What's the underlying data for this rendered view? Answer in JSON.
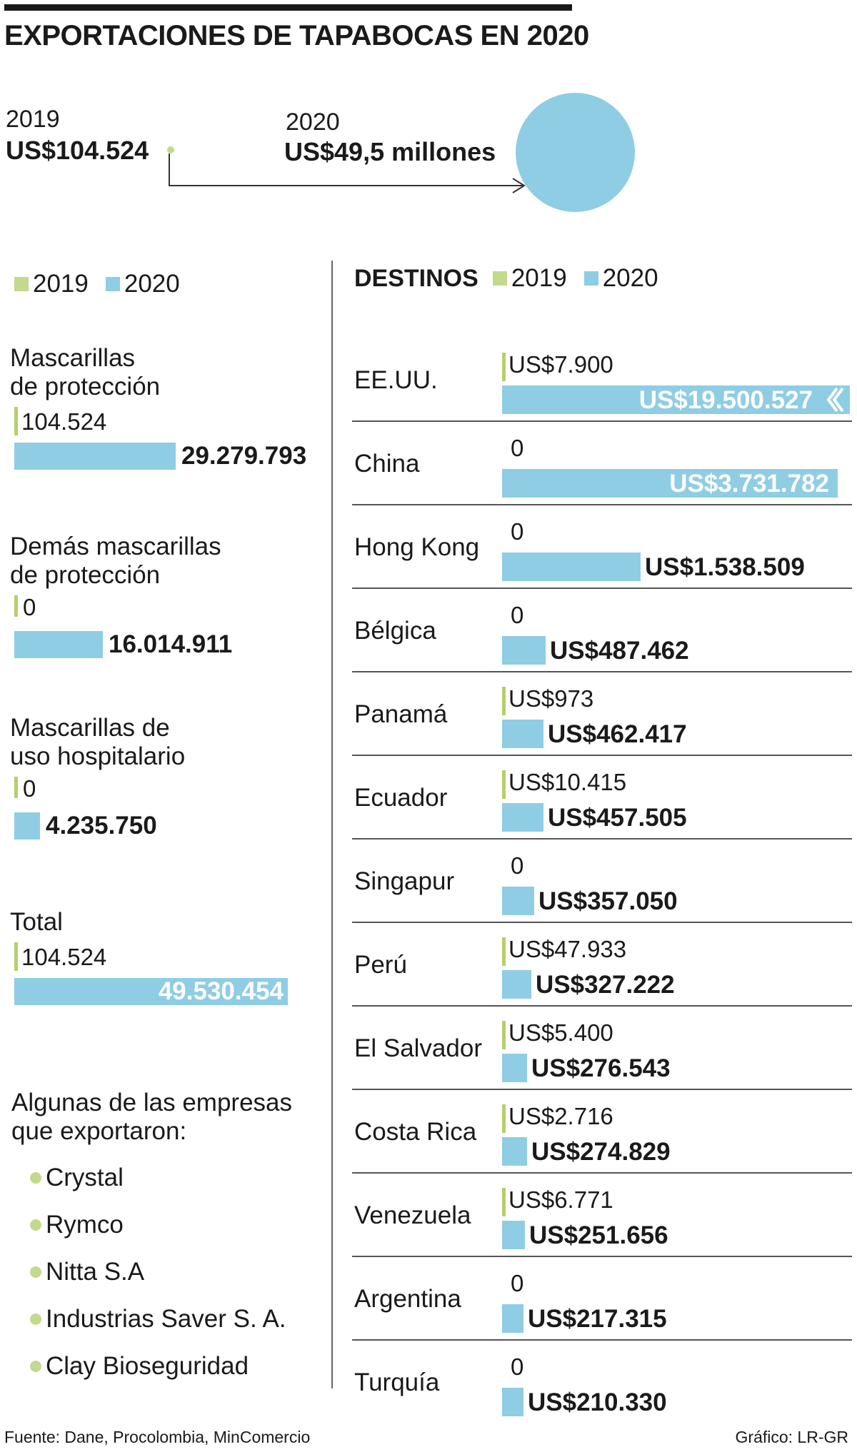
{
  "title": "EXPORTACIONES DE TAPABOCAS EN 2020",
  "summary": {
    "year_2019": "2019",
    "value_2019": "US$104.524",
    "year_2020": "2020",
    "value_2020": "US$49,5 millones"
  },
  "legend": {
    "y2019": "2019",
    "y2020": "2020"
  },
  "destinos_heading": "DESTINOS",
  "colors": {
    "c2019": "#b5d06a",
    "c2020": "#8fcde4",
    "text": "#1a1a1a"
  },
  "chart_data": [
    {
      "type": "bar",
      "categories": [
        "Mascarillas de protección",
        "Demás mascarillas de protección",
        "Mascarillas de uso hospitalario",
        "Total"
      ],
      "series": [
        {
          "name": "2019",
          "values": [
            104524,
            0,
            0,
            104524
          ],
          "labels": [
            "104.524",
            "0",
            "0",
            "104.524"
          ]
        },
        {
          "name": "2020",
          "values": [
            29279793,
            16014911,
            4235750,
            49530454
          ],
          "labels": [
            "29.279.793",
            "16.014.911",
            "4.235.750",
            "49.530.454"
          ]
        }
      ],
      "category_labels": [
        "Mascarillas\nde protección",
        "Demás mascarillas\nde protección",
        "Mascarillas de\nuso hospitalario",
        "Total"
      ]
    },
    {
      "type": "bar",
      "title": "DESTINOS",
      "categories": [
        "EE.UU.",
        "China",
        "Hong Kong",
        "Bélgica",
        "Panamá",
        "Ecuador",
        "Singapur",
        "Perú",
        "El Salvador",
        "Costa Rica",
        "Venezuela",
        "Argentina",
        "Turquía"
      ],
      "series": [
        {
          "name": "2019",
          "values": [
            7900,
            0,
            0,
            0,
            973,
            10415,
            0,
            47933,
            5400,
            2716,
            6771,
            0,
            0
          ],
          "labels": [
            "US$7.900",
            "0",
            "0",
            "0",
            "US$973",
            "US$10.415",
            "0",
            "US$47.933",
            "US$5.400",
            "US$2.716",
            "US$6.771",
            "0",
            "0"
          ]
        },
        {
          "name": "2020",
          "values": [
            19500527,
            3731782,
            1538509,
            487462,
            462417,
            457505,
            357050,
            327222,
            276543,
            274829,
            251656,
            217315,
            210330
          ],
          "labels": [
            "US$19.500.527",
            "US$3.731.782",
            "US$1.538.509",
            "US$487.462",
            "US$462.417",
            "US$457.505",
            "US$357.050",
            "US$327.222",
            "US$276.543",
            "US$274.829",
            "US$251.656",
            "US$217.315",
            "US$210.330"
          ]
        }
      ]
    }
  ],
  "companies_heading": "Algunas de las empresas\nque exportaron:",
  "companies": [
    "Crystal",
    "Rymco",
    "Nitta S.A",
    "Industrias Saver S. A.",
    "Clay Bioseguridad"
  ],
  "footer": {
    "source": "Fuente: Dane, Procolombia, MinComercio",
    "credit": "Gráfico: LR-GR"
  }
}
